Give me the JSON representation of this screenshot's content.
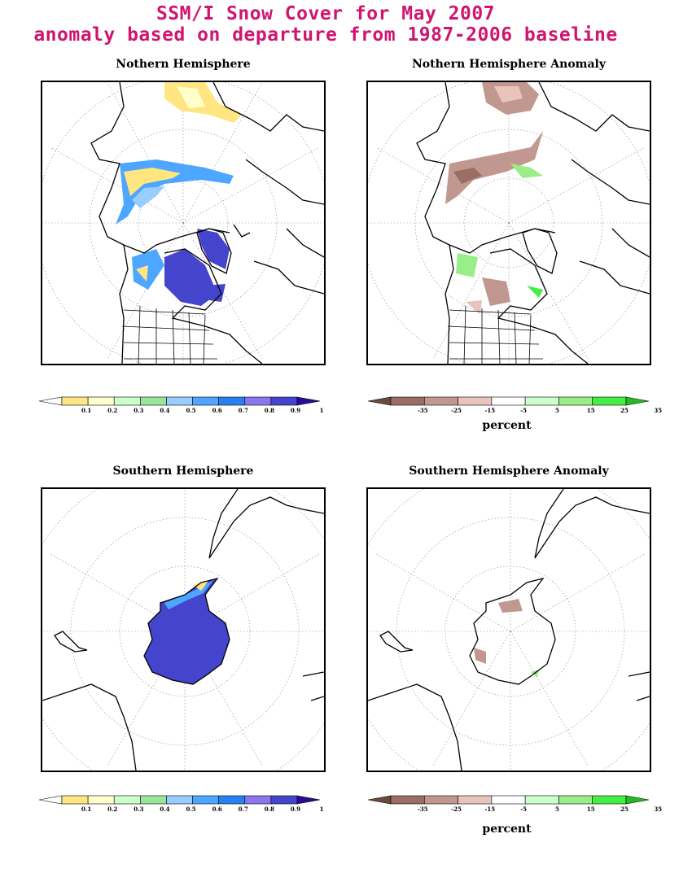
{
  "title_line1": "SSM/I Snow Cover for May 2007",
  "title_line2": "anomaly based on departure from 1987-2006 baseline",
  "panels": {
    "nh": "Nothern Hemisphere",
    "nh_anom": "Nothern Hemisphere Anomaly",
    "sh": "Southern Hemisphere",
    "sh_anom": "Southern Hemisphere Anomaly"
  },
  "colorbars": {
    "fraction": {
      "labels": [
        "0.1",
        "0.2",
        "0.3",
        "0.4",
        "0.5",
        "0.6",
        "0.7",
        "0.8",
        "0.9",
        "1"
      ],
      "colors": [
        "#ffffff",
        "#ffe680",
        "#ffffcc",
        "#ccffcc",
        "#99e699",
        "#99ccff",
        "#4da6ff",
        "#2980f0",
        "#8877ee",
        "#4444cc",
        "#2a0a99"
      ]
    },
    "anomaly": {
      "labels": [
        "-35",
        "-25",
        "-15",
        "-5",
        "5",
        "15",
        "25",
        "35"
      ],
      "colors": [
        "#6b4a3e",
        "#9a6e63",
        "#c09890",
        "#e8c4bc",
        "#ffffff",
        "#ccffcc",
        "#99ee88",
        "#44ee44",
        "#22bb22"
      ],
      "unit": "percent"
    }
  },
  "colors": {
    "title": "#d0156f",
    "snow_dense": "#4444cc",
    "snow_mid": "#4da6ff",
    "snow_light": "#ffe680",
    "anom_neg": "#b58a80",
    "anom_pos": "#99ee88"
  }
}
